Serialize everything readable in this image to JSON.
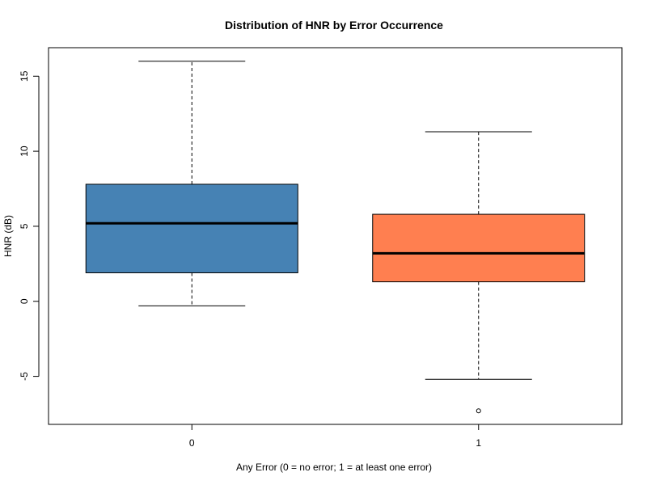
{
  "chart_data": {
    "type": "box",
    "title": "Distribution of HNR by Error Occurrence",
    "xlabel": "Any Error (0 = no error; 1 = at least one error)",
    "ylabel": "HNR (dB)",
    "categories": [
      "0",
      "1"
    ],
    "y_ticks": [
      "-5",
      "0",
      "5",
      "10",
      "15"
    ],
    "ylim": [
      -8.2,
      16.9
    ],
    "boxes": [
      {
        "category": "0",
        "whisker_low": -0.3,
        "q1": 1.9,
        "median": 5.2,
        "q3": 7.8,
        "whisker_high": 16.0,
        "outliers": [],
        "color": "#4682B4"
      },
      {
        "category": "1",
        "whisker_low": -5.2,
        "q1": 1.3,
        "median": 3.2,
        "q3": 5.8,
        "whisker_high": 11.3,
        "outliers": [
          -7.3
        ],
        "color": "#FF7F50"
      }
    ],
    "grid": false,
    "legend": "none"
  }
}
